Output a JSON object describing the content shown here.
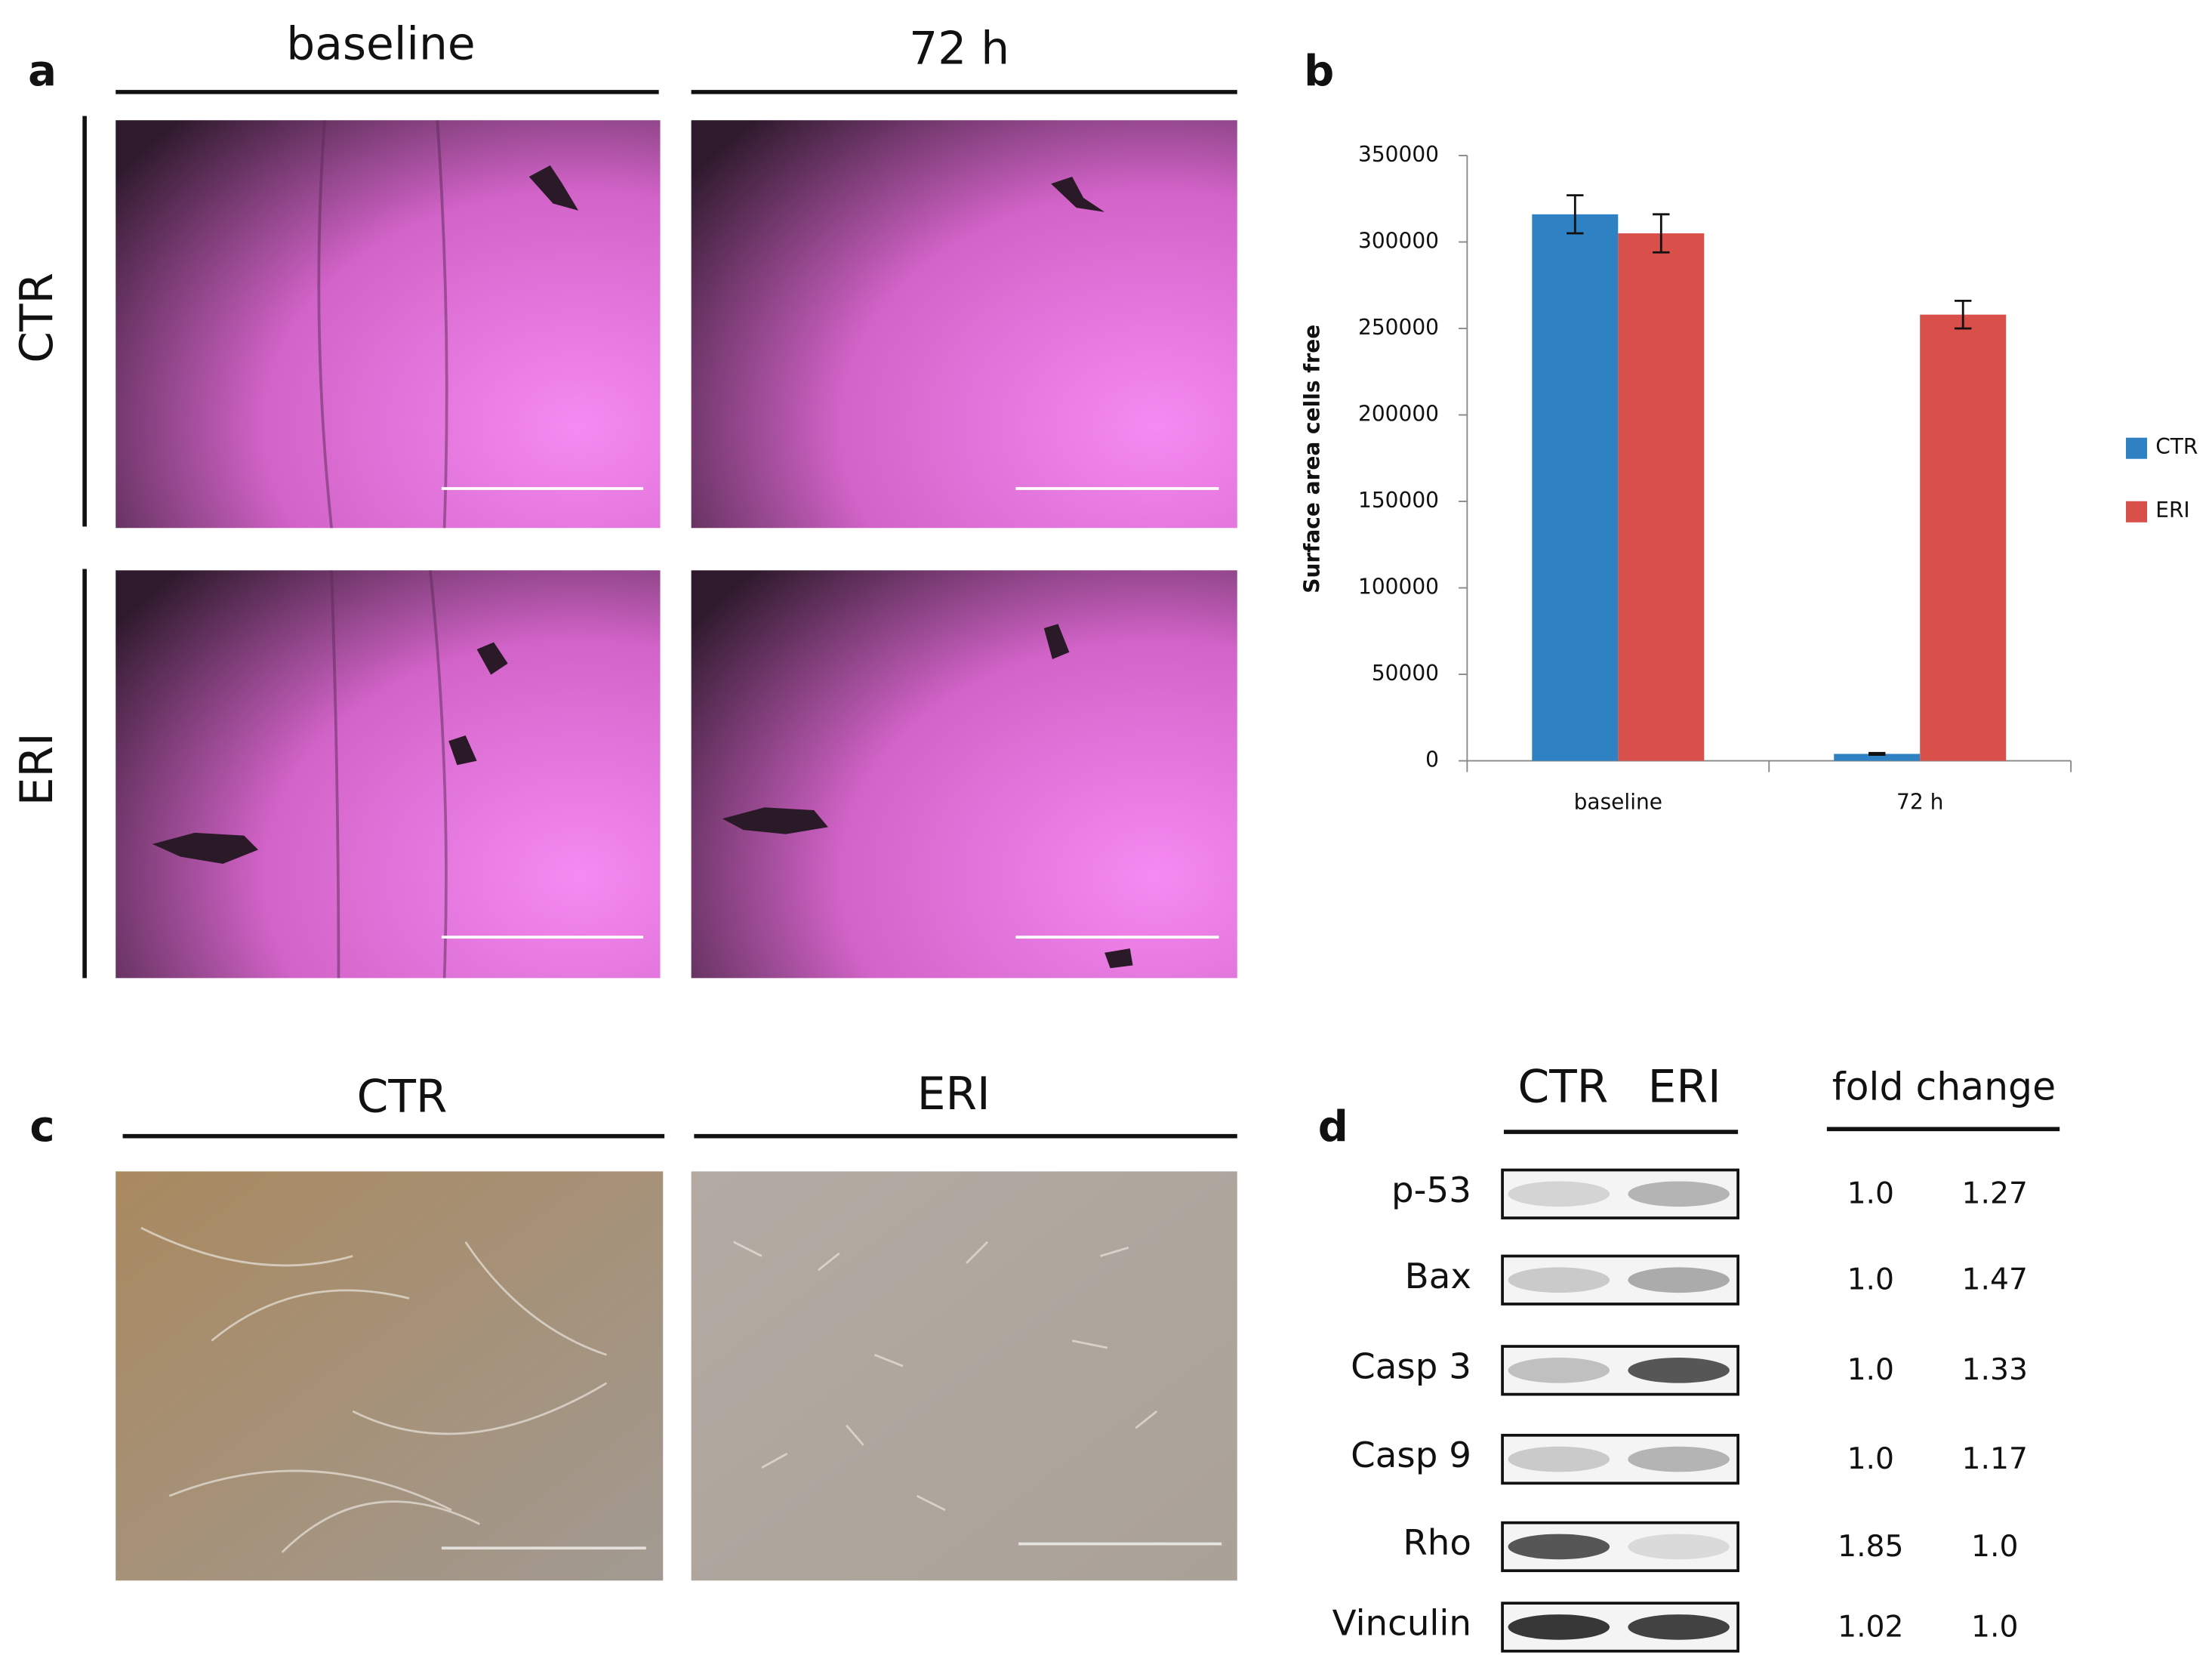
{
  "panel_a": {
    "label": "a",
    "columns": [
      "baseline",
      "72 h"
    ],
    "rows": [
      "CTR",
      "ERI"
    ]
  },
  "panel_b": {
    "label": "b"
  },
  "chart_data": {
    "type": "bar",
    "ylabel": "Surface area cells free",
    "categories": [
      "baseline",
      "72 h"
    ],
    "series": [
      {
        "name": "CTR",
        "color": "#2e81c2",
        "values": [
          316000,
          4000
        ],
        "errors": [
          11000,
          500
        ]
      },
      {
        "name": "ERI",
        "color": "#d9504a",
        "values": [
          305000,
          258000
        ],
        "errors": [
          11000,
          8000
        ]
      }
    ],
    "ylim": [
      0,
      350000
    ],
    "yticks": [
      0,
      50000,
      100000,
      150000,
      200000,
      250000,
      300000,
      350000
    ],
    "legend": "right"
  },
  "panel_c": {
    "label": "c",
    "columns": [
      "CTR",
      "ERI"
    ]
  },
  "panel_d": {
    "label": "d",
    "columns": [
      "CTR",
      "ERI"
    ],
    "fold_change_header": "fold change",
    "rows": [
      {
        "protein": "p-53",
        "ctr": "1.0",
        "eri": "1.27"
      },
      {
        "protein": "Bax",
        "ctr": "1.0",
        "eri": "1.47"
      },
      {
        "protein": "Casp 3",
        "ctr": "1.0",
        "eri": "1.33"
      },
      {
        "protein": "Casp 9",
        "ctr": "1.0",
        "eri": "1.17"
      },
      {
        "protein": "Rho",
        "ctr": "1.85",
        "eri": "1.0"
      },
      {
        "protein": "Vinculin",
        "ctr": "1.02",
        "eri": "1.0"
      }
    ]
  }
}
